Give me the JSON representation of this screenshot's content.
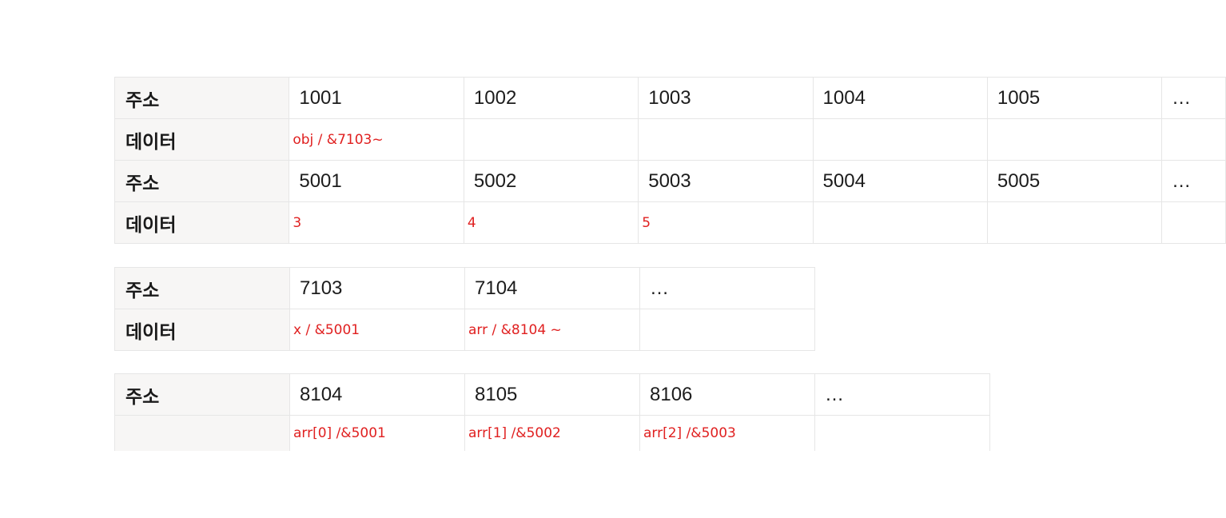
{
  "labels": {
    "address": "주소",
    "data": "데이터"
  },
  "table1": {
    "row1_addresses": [
      "1001",
      "1002",
      "1003",
      "1004",
      "1005",
      "…"
    ],
    "row1_data": [
      "obj /  &7103~",
      "",
      "",
      "",
      "",
      ""
    ],
    "row2_addresses": [
      "5001",
      "5002",
      "5003",
      "5004",
      "5005",
      "…"
    ],
    "row2_data": [
      "3",
      "4",
      "5",
      "",
      "",
      ""
    ]
  },
  "table2": {
    "addresses": [
      "7103",
      "7104",
      "…"
    ],
    "data": [
      "x / &5001",
      "arr / &8104 ~",
      ""
    ]
  },
  "table3": {
    "addresses": [
      "8104",
      "8105",
      "8106",
      "…"
    ],
    "data": [
      "arr[0]  /&5001",
      "arr[1]  /&5002",
      "arr[2]  /&5003",
      ""
    ]
  },
  "colors": {
    "annotation": "#e02020",
    "header_bg": "#f7f6f5",
    "grid_line": "#e6e6e6"
  }
}
